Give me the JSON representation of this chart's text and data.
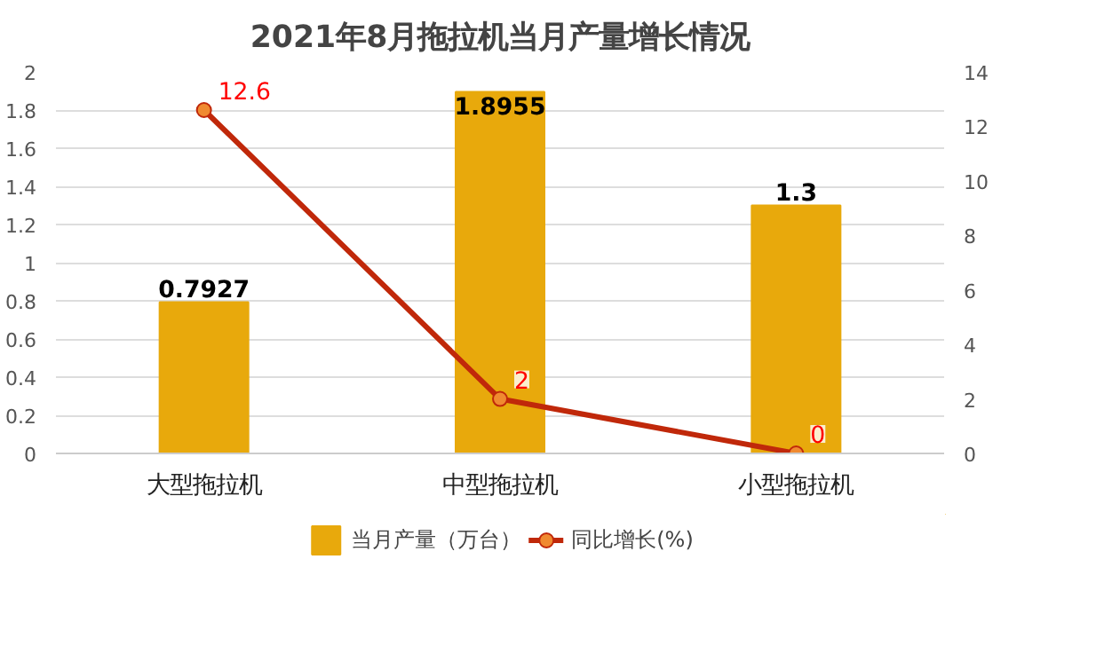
{
  "chart_data": {
    "type": "bar",
    "title": "2021年8月拖拉机当月产量增长情况",
    "categories": [
      "大型拖拉机",
      "中型拖拉机",
      "小型拖拉机"
    ],
    "series": [
      {
        "name": "当月产量（万台）",
        "color": "#e8a90c",
        "values": [
          0.7927,
          1.8955,
          1.3
        ]
      },
      {
        "name": "同比增长(%)",
        "type": "line",
        "axis": "y2",
        "color": "#c0280a",
        "values": [
          12.6,
          2,
          0
        ],
        "marker": "circle"
      }
    ],
    "ylim": [
      0,
      2
    ],
    "yticks": [
      0,
      0.2,
      0.4,
      0.6,
      0.8,
      1,
      1.2,
      1.4,
      1.6,
      1.8,
      2
    ],
    "y2lim": [
      0,
      14
    ],
    "y2ticks": [
      0,
      2,
      4,
      6,
      8,
      10,
      12,
      14
    ],
    "grid": "y",
    "legend": "bottom",
    "data_labels": true
  }
}
